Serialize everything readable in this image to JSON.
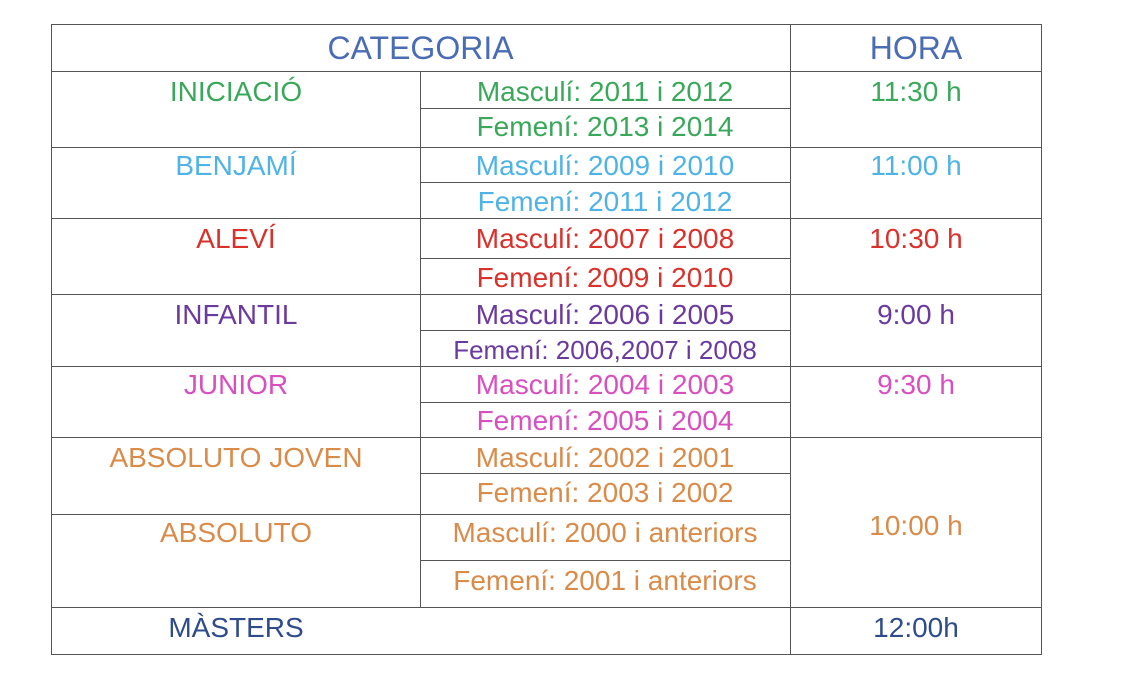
{
  "colors": {
    "header": "#4a6cb5",
    "iniciacio": "#3aa85a",
    "benjami": "#4fb3e6",
    "alevi": "#d9312b",
    "infantil": "#6b3a9e",
    "junior": "#d84fbf",
    "absoluto": "#d98b4a",
    "masters": "#2e4c8c"
  },
  "header": {
    "categoria": "CATEGORIA",
    "hora": "HORA"
  },
  "rows": {
    "iniciacio": {
      "category": "INICIACIÓ",
      "masculi": "Masculí: 2011 i 2012",
      "femeni": "Femení: 2013 i 2014",
      "hora": "11:30 h"
    },
    "benjami": {
      "category": "BENJAMÍ",
      "masculi": "Masculí: 2009 i 2010",
      "femeni": "Femení: 2011 i 2012",
      "hora": "11:00 h"
    },
    "alevi": {
      "category": "ALEVÍ",
      "masculi": "Masculí: 2007 i 2008",
      "femeni": "Femení: 2009 i 2010",
      "hora": "10:30 h"
    },
    "infantil": {
      "category": "INFANTIL",
      "masculi": "Masculí: 2006 i 2005",
      "femeni": "Femení: 2006,2007 i 2008",
      "hora": "9:00 h"
    },
    "junior": {
      "category": "JUNIOR",
      "masculi": "Masculí: 2004 i 2003",
      "femeni": "Femení: 2005 i 2004",
      "hora": "9:30 h"
    },
    "absoluto_joven": {
      "category": "ABSOLUTO JOVEN",
      "masculi": "Masculí: 2002 i 2001",
      "femeni": "Femení: 2003 i 2002"
    },
    "absoluto": {
      "category": "ABSOLUTO",
      "masculi": "Masculí: 2000 i anteriors",
      "femeni": "Femení: 2001 i anteriors"
    },
    "absoluto_hora": "10:00 h",
    "masters": {
      "category": "MÀSTERS",
      "hora": "12:00h"
    }
  }
}
